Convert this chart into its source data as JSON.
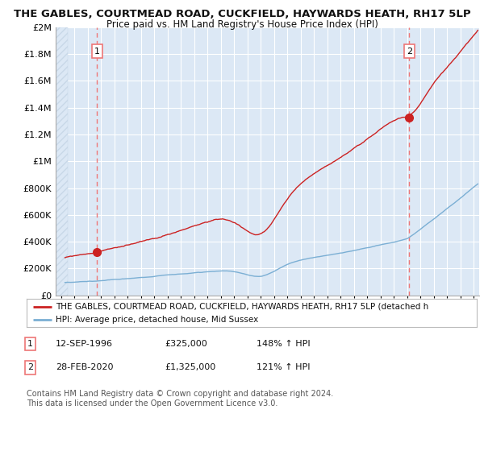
{
  "title": "THE GABLES, COURTMEAD ROAD, CUCKFIELD, HAYWARDS HEATH, RH17 5LP",
  "subtitle": "Price paid vs. HM Land Registry's House Price Index (HPI)",
  "ylim": [
    0,
    2000000
  ],
  "yticks": [
    0,
    200000,
    400000,
    600000,
    800000,
    1000000,
    1200000,
    1400000,
    1600000,
    1800000,
    2000000
  ],
  "ytick_labels": [
    "£0",
    "£200K",
    "£400K",
    "£600K",
    "£800K",
    "£1M",
    "£1.2M",
    "£1.4M",
    "£1.6M",
    "£1.8M",
    "£2M"
  ],
  "hpi_color": "#7bafd4",
  "price_color": "#cc2222",
  "dashed_line_color": "#ee7777",
  "background_plot": "#dce8f5",
  "background_fig": "#ffffff",
  "grid_color": "#ffffff",
  "hatch_color": "#c8d8e8",
  "sale1_x": 1996.71,
  "sale1_y": 325000,
  "sale2_x": 2020.16,
  "sale2_y": 1325000,
  "legend_label1": "THE GABLES, COURTMEAD ROAD, CUCKFIELD, HAYWARDS HEATH, RH17 5LP (detached h",
  "legend_label2": "HPI: Average price, detached house, Mid Sussex",
  "table_row1": [
    "1",
    "12-SEP-1996",
    "£325,000",
    "148% ↑ HPI"
  ],
  "table_row2": [
    "2",
    "28-FEB-2020",
    "£1,325,000",
    "121% ↑ HPI"
  ],
  "footnote": "Contains HM Land Registry data © Crown copyright and database right 2024.\nThis data is licensed under the Open Government Licence v3.0.",
  "xmin": 1993.6,
  "xmax": 2025.4,
  "data_start": 1994.5
}
